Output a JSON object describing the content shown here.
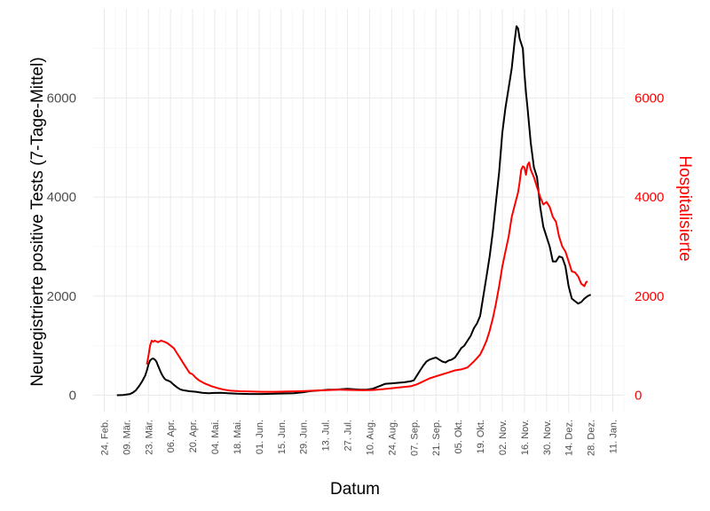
{
  "chart_data": {
    "type": "line",
    "xlabel": "Datum",
    "ylabel": "Neuregistrierte positive Tests (7-Tage-Mittel)",
    "y2label": "Hospitalisierte",
    "x_ticks": [
      "24. Feb.",
      "09. Mär.",
      "23. Mär.",
      "06. Apr.",
      "20. Apr.",
      "04. Mai.",
      "18. Mai.",
      "01. Jun.",
      "15. Jun.",
      "29. Jun.",
      "13. Jul.",
      "27. Jul.",
      "10. Aug.",
      "24. Aug.",
      "07. Sep.",
      "21. Sep.",
      "05. Okt.",
      "19. Okt.",
      "02. Nov.",
      "16. Nov.",
      "30. Nov.",
      "14. Dez.",
      "28. Dez.",
      "11. Jan."
    ],
    "x_tick_days": [
      0,
      14,
      28,
      42,
      56,
      70,
      84,
      98,
      112,
      126,
      140,
      154,
      168,
      182,
      196,
      210,
      224,
      238,
      252,
      266,
      280,
      294,
      308,
      322
    ],
    "y_ticks": [
      "0",
      "2000",
      "4000",
      "6000"
    ],
    "y_tick_values": [
      0,
      2000,
      4000,
      6000
    ],
    "y2_ticks": [
      "0",
      "2000",
      "4000",
      "6000"
    ],
    "y2_tick_values": [
      0,
      2000,
      4000,
      6000
    ],
    "ylim": [
      -350,
      7800
    ],
    "y2lim": [
      -350,
      7800
    ],
    "grid": true,
    "series": [
      {
        "axis": "left",
        "color": "#000000",
        "points": [
          [
            8,
            0
          ],
          [
            12,
            5
          ],
          [
            16,
            20
          ],
          [
            18,
            50
          ],
          [
            20,
            100
          ],
          [
            22,
            180
          ],
          [
            24,
            280
          ],
          [
            26,
            400
          ],
          [
            27,
            500
          ],
          [
            28,
            620
          ],
          [
            29,
            700
          ],
          [
            30,
            730
          ],
          [
            31,
            740
          ],
          [
            32,
            720
          ],
          [
            33,
            680
          ],
          [
            34,
            600
          ],
          [
            35,
            520
          ],
          [
            36,
            450
          ],
          [
            37,
            390
          ],
          [
            38,
            340
          ],
          [
            39,
            310
          ],
          [
            40,
            300
          ],
          [
            42,
            270
          ],
          [
            44,
            210
          ],
          [
            46,
            160
          ],
          [
            48,
            120
          ],
          [
            50,
            100
          ],
          [
            54,
            80
          ],
          [
            58,
            70
          ],
          [
            62,
            50
          ],
          [
            66,
            40
          ],
          [
            70,
            45
          ],
          [
            74,
            50
          ],
          [
            78,
            40
          ],
          [
            84,
            30
          ],
          [
            92,
            25
          ],
          [
            100,
            25
          ],
          [
            108,
            30
          ],
          [
            114,
            35
          ],
          [
            120,
            40
          ],
          [
            126,
            60
          ],
          [
            130,
            80
          ],
          [
            134,
            90
          ],
          [
            138,
            100
          ],
          [
            142,
            110
          ],
          [
            146,
            110
          ],
          [
            150,
            120
          ],
          [
            154,
            130
          ],
          [
            158,
            120
          ],
          [
            162,
            110
          ],
          [
            166,
            110
          ],
          [
            170,
            130
          ],
          [
            174,
            180
          ],
          [
            178,
            230
          ],
          [
            182,
            240
          ],
          [
            186,
            250
          ],
          [
            190,
            260
          ],
          [
            194,
            280
          ],
          [
            196,
            300
          ],
          [
            198,
            400
          ],
          [
            200,
            500
          ],
          [
            202,
            600
          ],
          [
            204,
            680
          ],
          [
            206,
            720
          ],
          [
            208,
            740
          ],
          [
            210,
            760
          ],
          [
            212,
            720
          ],
          [
            214,
            680
          ],
          [
            216,
            660
          ],
          [
            218,
            700
          ],
          [
            220,
            720
          ],
          [
            222,
            760
          ],
          [
            224,
            850
          ],
          [
            226,
            950
          ],
          [
            228,
            1000
          ],
          [
            230,
            1100
          ],
          [
            232,
            1200
          ],
          [
            234,
            1350
          ],
          [
            236,
            1450
          ],
          [
            238,
            1600
          ],
          [
            240,
            2000
          ],
          [
            242,
            2400
          ],
          [
            244,
            2800
          ],
          [
            246,
            3300
          ],
          [
            248,
            3900
          ],
          [
            250,
            4500
          ],
          [
            252,
            5300
          ],
          [
            254,
            5800
          ],
          [
            256,
            6200
          ],
          [
            258,
            6600
          ],
          [
            260,
            7200
          ],
          [
            261,
            7450
          ],
          [
            262,
            7400
          ],
          [
            263,
            7200
          ],
          [
            264,
            7100
          ],
          [
            265,
            7000
          ],
          [
            266,
            6500
          ],
          [
            267,
            6100
          ],
          [
            268,
            5800
          ],
          [
            270,
            5100
          ],
          [
            272,
            4600
          ],
          [
            274,
            4400
          ],
          [
            276,
            3800
          ],
          [
            278,
            3400
          ],
          [
            280,
            3200
          ],
          [
            282,
            3000
          ],
          [
            284,
            2700
          ],
          [
            286,
            2700
          ],
          [
            288,
            2800
          ],
          [
            290,
            2780
          ],
          [
            292,
            2600
          ],
          [
            294,
            2200
          ],
          [
            296,
            1950
          ],
          [
            298,
            1900
          ],
          [
            300,
            1850
          ],
          [
            302,
            1880
          ],
          [
            304,
            1950
          ],
          [
            306,
            2000
          ],
          [
            308,
            2030
          ]
        ]
      },
      {
        "axis": "right",
        "color": "#ff0000",
        "points": [
          [
            27,
            620
          ],
          [
            28,
            800
          ],
          [
            29,
            1000
          ],
          [
            30,
            1100
          ],
          [
            31,
            1080
          ],
          [
            32,
            1100
          ],
          [
            34,
            1070
          ],
          [
            36,
            1100
          ],
          [
            38,
            1080
          ],
          [
            40,
            1050
          ],
          [
            42,
            1000
          ],
          [
            44,
            950
          ],
          [
            46,
            850
          ],
          [
            48,
            750
          ],
          [
            50,
            650
          ],
          [
            52,
            550
          ],
          [
            54,
            450
          ],
          [
            56,
            420
          ],
          [
            58,
            350
          ],
          [
            60,
            300
          ],
          [
            64,
            230
          ],
          [
            68,
            180
          ],
          [
            72,
            140
          ],
          [
            76,
            110
          ],
          [
            80,
            90
          ],
          [
            86,
            80
          ],
          [
            92,
            75
          ],
          [
            100,
            70
          ],
          [
            108,
            70
          ],
          [
            116,
            75
          ],
          [
            124,
            80
          ],
          [
            132,
            90
          ],
          [
            140,
            100
          ],
          [
            148,
            110
          ],
          [
            156,
            105
          ],
          [
            164,
            100
          ],
          [
            170,
            105
          ],
          [
            176,
            120
          ],
          [
            182,
            140
          ],
          [
            188,
            160
          ],
          [
            194,
            180
          ],
          [
            198,
            220
          ],
          [
            202,
            280
          ],
          [
            206,
            340
          ],
          [
            210,
            380
          ],
          [
            214,
            420
          ],
          [
            218,
            460
          ],
          [
            222,
            500
          ],
          [
            226,
            520
          ],
          [
            230,
            560
          ],
          [
            232,
            620
          ],
          [
            234,
            680
          ],
          [
            236,
            750
          ],
          [
            238,
            820
          ],
          [
            240,
            950
          ],
          [
            242,
            1100
          ],
          [
            244,
            1300
          ],
          [
            246,
            1550
          ],
          [
            248,
            1850
          ],
          [
            250,
            2200
          ],
          [
            252,
            2600
          ],
          [
            254,
            2900
          ],
          [
            256,
            3200
          ],
          [
            258,
            3600
          ],
          [
            260,
            3850
          ],
          [
            262,
            4100
          ],
          [
            263,
            4300
          ],
          [
            264,
            4550
          ],
          [
            265,
            4620
          ],
          [
            266,
            4600
          ],
          [
            267,
            4450
          ],
          [
            268,
            4650
          ],
          [
            269,
            4700
          ],
          [
            270,
            4550
          ],
          [
            272,
            4400
          ],
          [
            274,
            4200
          ],
          [
            276,
            4000
          ],
          [
            278,
            3850
          ],
          [
            280,
            3900
          ],
          [
            282,
            3800
          ],
          [
            284,
            3600
          ],
          [
            286,
            3500
          ],
          [
            288,
            3200
          ],
          [
            290,
            3000
          ],
          [
            292,
            2900
          ],
          [
            294,
            2700
          ],
          [
            296,
            2500
          ],
          [
            298,
            2480
          ],
          [
            300,
            2400
          ],
          [
            302,
            2250
          ],
          [
            304,
            2200
          ],
          [
            305,
            2280
          ],
          [
            306,
            2300
          ]
        ]
      }
    ]
  }
}
